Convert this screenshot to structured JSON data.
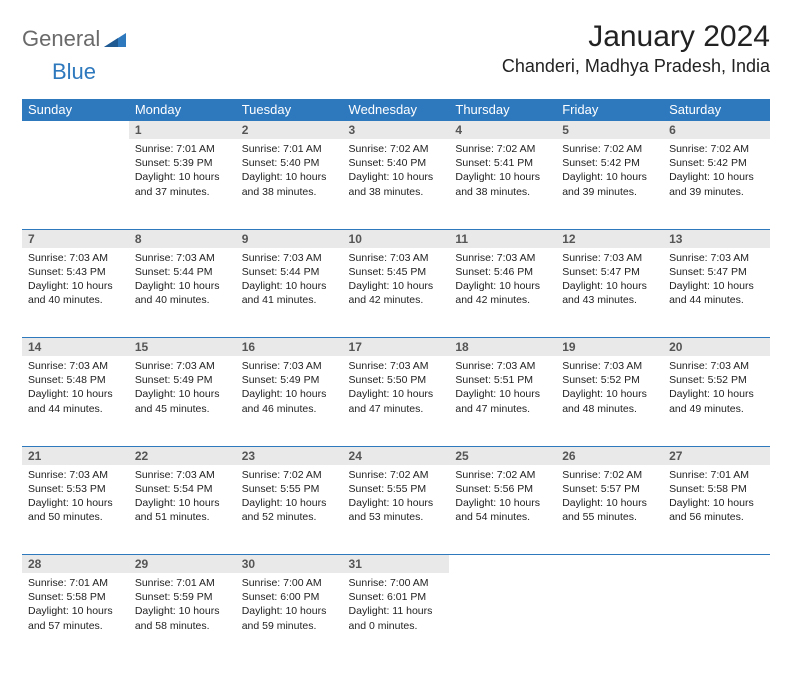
{
  "logo": {
    "text1": "General",
    "text2": "Blue",
    "color1": "#6a6a6a",
    "color2": "#2e78bd"
  },
  "title": "January 2024",
  "location": "Chanderi, Madhya Pradesh, India",
  "header_bg": "#2e78bd",
  "header_fg": "#ffffff",
  "daynum_bg": "#e9e9e9",
  "rule_color": "#2e78bd",
  "weekdays": [
    "Sunday",
    "Monday",
    "Tuesday",
    "Wednesday",
    "Thursday",
    "Friday",
    "Saturday"
  ],
  "weeks": [
    {
      "nums": [
        "",
        "1",
        "2",
        "3",
        "4",
        "5",
        "6"
      ],
      "cells": [
        null,
        {
          "sunrise": "Sunrise: 7:01 AM",
          "sunset": "Sunset: 5:39 PM",
          "daylight": "Daylight: 10 hours and 37 minutes."
        },
        {
          "sunrise": "Sunrise: 7:01 AM",
          "sunset": "Sunset: 5:40 PM",
          "daylight": "Daylight: 10 hours and 38 minutes."
        },
        {
          "sunrise": "Sunrise: 7:02 AM",
          "sunset": "Sunset: 5:40 PM",
          "daylight": "Daylight: 10 hours and 38 minutes."
        },
        {
          "sunrise": "Sunrise: 7:02 AM",
          "sunset": "Sunset: 5:41 PM",
          "daylight": "Daylight: 10 hours and 38 minutes."
        },
        {
          "sunrise": "Sunrise: 7:02 AM",
          "sunset": "Sunset: 5:42 PM",
          "daylight": "Daylight: 10 hours and 39 minutes."
        },
        {
          "sunrise": "Sunrise: 7:02 AM",
          "sunset": "Sunset: 5:42 PM",
          "daylight": "Daylight: 10 hours and 39 minutes."
        }
      ]
    },
    {
      "nums": [
        "7",
        "8",
        "9",
        "10",
        "11",
        "12",
        "13"
      ],
      "cells": [
        {
          "sunrise": "Sunrise: 7:03 AM",
          "sunset": "Sunset: 5:43 PM",
          "daylight": "Daylight: 10 hours and 40 minutes."
        },
        {
          "sunrise": "Sunrise: 7:03 AM",
          "sunset": "Sunset: 5:44 PM",
          "daylight": "Daylight: 10 hours and 40 minutes."
        },
        {
          "sunrise": "Sunrise: 7:03 AM",
          "sunset": "Sunset: 5:44 PM",
          "daylight": "Daylight: 10 hours and 41 minutes."
        },
        {
          "sunrise": "Sunrise: 7:03 AM",
          "sunset": "Sunset: 5:45 PM",
          "daylight": "Daylight: 10 hours and 42 minutes."
        },
        {
          "sunrise": "Sunrise: 7:03 AM",
          "sunset": "Sunset: 5:46 PM",
          "daylight": "Daylight: 10 hours and 42 minutes."
        },
        {
          "sunrise": "Sunrise: 7:03 AM",
          "sunset": "Sunset: 5:47 PM",
          "daylight": "Daylight: 10 hours and 43 minutes."
        },
        {
          "sunrise": "Sunrise: 7:03 AM",
          "sunset": "Sunset: 5:47 PM",
          "daylight": "Daylight: 10 hours and 44 minutes."
        }
      ]
    },
    {
      "nums": [
        "14",
        "15",
        "16",
        "17",
        "18",
        "19",
        "20"
      ],
      "cells": [
        {
          "sunrise": "Sunrise: 7:03 AM",
          "sunset": "Sunset: 5:48 PM",
          "daylight": "Daylight: 10 hours and 44 minutes."
        },
        {
          "sunrise": "Sunrise: 7:03 AM",
          "sunset": "Sunset: 5:49 PM",
          "daylight": "Daylight: 10 hours and 45 minutes."
        },
        {
          "sunrise": "Sunrise: 7:03 AM",
          "sunset": "Sunset: 5:49 PM",
          "daylight": "Daylight: 10 hours and 46 minutes."
        },
        {
          "sunrise": "Sunrise: 7:03 AM",
          "sunset": "Sunset: 5:50 PM",
          "daylight": "Daylight: 10 hours and 47 minutes."
        },
        {
          "sunrise": "Sunrise: 7:03 AM",
          "sunset": "Sunset: 5:51 PM",
          "daylight": "Daylight: 10 hours and 47 minutes."
        },
        {
          "sunrise": "Sunrise: 7:03 AM",
          "sunset": "Sunset: 5:52 PM",
          "daylight": "Daylight: 10 hours and 48 minutes."
        },
        {
          "sunrise": "Sunrise: 7:03 AM",
          "sunset": "Sunset: 5:52 PM",
          "daylight": "Daylight: 10 hours and 49 minutes."
        }
      ]
    },
    {
      "nums": [
        "21",
        "22",
        "23",
        "24",
        "25",
        "26",
        "27"
      ],
      "cells": [
        {
          "sunrise": "Sunrise: 7:03 AM",
          "sunset": "Sunset: 5:53 PM",
          "daylight": "Daylight: 10 hours and 50 minutes."
        },
        {
          "sunrise": "Sunrise: 7:03 AM",
          "sunset": "Sunset: 5:54 PM",
          "daylight": "Daylight: 10 hours and 51 minutes."
        },
        {
          "sunrise": "Sunrise: 7:02 AM",
          "sunset": "Sunset: 5:55 PM",
          "daylight": "Daylight: 10 hours and 52 minutes."
        },
        {
          "sunrise": "Sunrise: 7:02 AM",
          "sunset": "Sunset: 5:55 PM",
          "daylight": "Daylight: 10 hours and 53 minutes."
        },
        {
          "sunrise": "Sunrise: 7:02 AM",
          "sunset": "Sunset: 5:56 PM",
          "daylight": "Daylight: 10 hours and 54 minutes."
        },
        {
          "sunrise": "Sunrise: 7:02 AM",
          "sunset": "Sunset: 5:57 PM",
          "daylight": "Daylight: 10 hours and 55 minutes."
        },
        {
          "sunrise": "Sunrise: 7:01 AM",
          "sunset": "Sunset: 5:58 PM",
          "daylight": "Daylight: 10 hours and 56 minutes."
        }
      ]
    },
    {
      "nums": [
        "28",
        "29",
        "30",
        "31",
        "",
        "",
        ""
      ],
      "cells": [
        {
          "sunrise": "Sunrise: 7:01 AM",
          "sunset": "Sunset: 5:58 PM",
          "daylight": "Daylight: 10 hours and 57 minutes."
        },
        {
          "sunrise": "Sunrise: 7:01 AM",
          "sunset": "Sunset: 5:59 PM",
          "daylight": "Daylight: 10 hours and 58 minutes."
        },
        {
          "sunrise": "Sunrise: 7:00 AM",
          "sunset": "Sunset: 6:00 PM",
          "daylight": "Daylight: 10 hours and 59 minutes."
        },
        {
          "sunrise": "Sunrise: 7:00 AM",
          "sunset": "Sunset: 6:01 PM",
          "daylight": "Daylight: 11 hours and 0 minutes."
        },
        null,
        null,
        null
      ]
    }
  ]
}
